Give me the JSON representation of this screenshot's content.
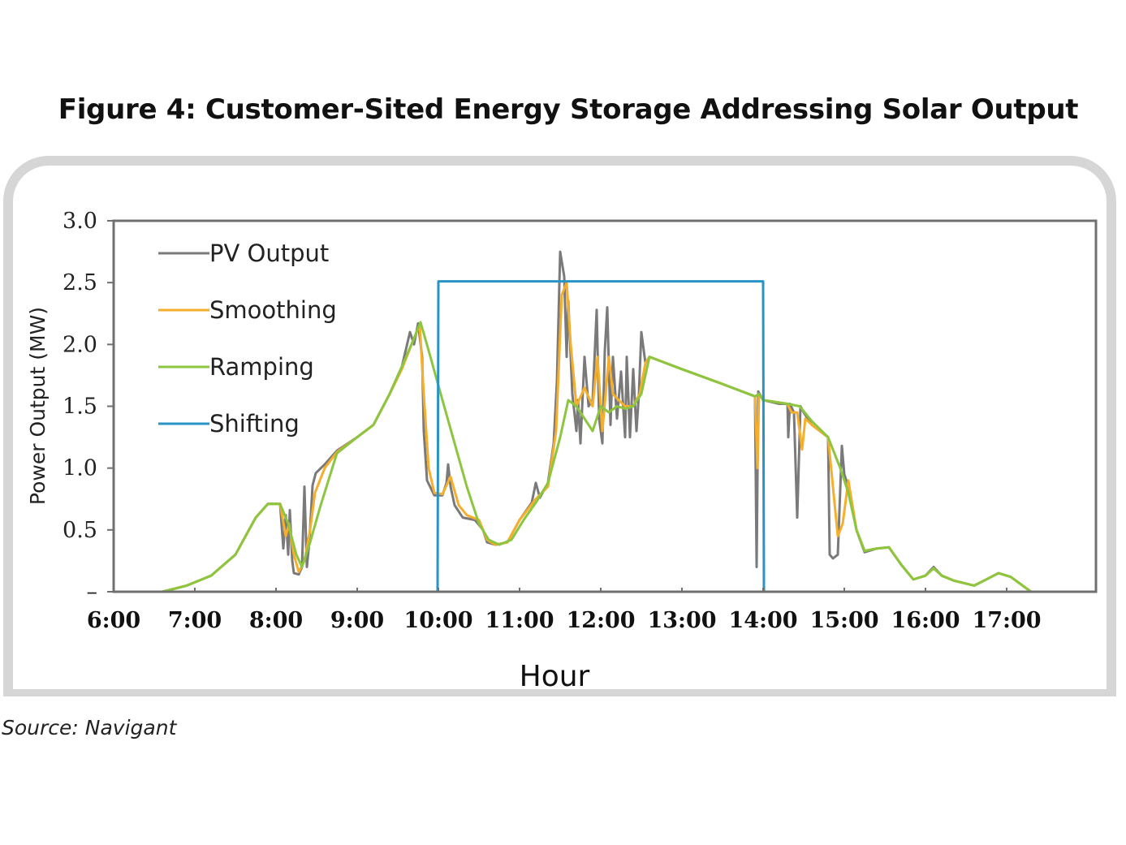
{
  "figure_title": "Figure 4: Customer-Sited Energy Storage Addressing Solar Output",
  "source": "Source: Navigant",
  "colors": {
    "pv": "#7a7a7a",
    "smoothing": "#f6ae2d",
    "ramping": "#8cc63f",
    "shifting": "#2a93c6",
    "axis": "#707070",
    "frame": "#d6d6d6"
  },
  "chart_data": {
    "type": "line",
    "title": "Figure 4: Customer-Sited Energy Storage Addressing Solar Output",
    "xlabel": "Hour",
    "ylabel": "Power Output (MW)",
    "xlim": [
      6,
      18.1
    ],
    "ylim": [
      0,
      3.0
    ],
    "x_ticks": [
      6,
      7,
      8,
      9,
      10,
      11,
      12,
      13,
      14,
      15,
      16,
      17
    ],
    "x_tick_labels": [
      "6:00",
      "7:00",
      "8:00",
      "9:00",
      "10:00",
      "11:00",
      "12:00",
      "13:00",
      "14:00",
      "15:00",
      "16:00",
      "17:00"
    ],
    "y_ticks": [
      0,
      0.5,
      1.0,
      1.5,
      2.0,
      2.5,
      3.0
    ],
    "y_tick_labels": [
      "–",
      "0.5",
      "1.0",
      "1.5",
      "2.0",
      "2.5",
      "3.0"
    ],
    "legend_position": "top-left",
    "series": [
      {
        "name": "PV Output",
        "color": "#7a7a7a",
        "points": [
          [
            6.6,
            0
          ],
          [
            6.9,
            0.05
          ],
          [
            7.2,
            0.13
          ],
          [
            7.5,
            0.3
          ],
          [
            7.75,
            0.6
          ],
          [
            7.9,
            0.71
          ],
          [
            8.05,
            0.71
          ],
          [
            8.09,
            0.35
          ],
          [
            8.12,
            0.62
          ],
          [
            8.15,
            0.3
          ],
          [
            8.17,
            0.66
          ],
          [
            8.2,
            0.25
          ],
          [
            8.22,
            0.15
          ],
          [
            8.28,
            0.14
          ],
          [
            8.32,
            0.2
          ],
          [
            8.35,
            0.85
          ],
          [
            8.38,
            0.2
          ],
          [
            8.41,
            0.4
          ],
          [
            8.45,
            0.86
          ],
          [
            8.49,
            0.96
          ],
          [
            8.6,
            1.03
          ],
          [
            8.75,
            1.14
          ],
          [
            9.0,
            1.25
          ],
          [
            9.2,
            1.35
          ],
          [
            9.4,
            1.6
          ],
          [
            9.55,
            1.82
          ],
          [
            9.65,
            2.1
          ],
          [
            9.7,
            2.0
          ],
          [
            9.75,
            2.17
          ],
          [
            9.8,
            1.9
          ],
          [
            9.82,
            1.3
          ],
          [
            9.86,
            0.9
          ],
          [
            9.95,
            0.78
          ],
          [
            10.05,
            0.78
          ],
          [
            10.1,
            0.88
          ],
          [
            10.12,
            1.03
          ],
          [
            10.15,
            0.85
          ],
          [
            10.2,
            0.7
          ],
          [
            10.25,
            0.65
          ],
          [
            10.3,
            0.6
          ],
          [
            10.45,
            0.58
          ],
          [
            10.55,
            0.5
          ],
          [
            10.6,
            0.4
          ],
          [
            10.7,
            0.38
          ],
          [
            10.85,
            0.4
          ],
          [
            11.0,
            0.58
          ],
          [
            11.15,
            0.72
          ],
          [
            11.2,
            0.88
          ],
          [
            11.25,
            0.76
          ],
          [
            11.35,
            0.88
          ],
          [
            11.42,
            1.2
          ],
          [
            11.46,
            1.7
          ],
          [
            11.5,
            2.75
          ],
          [
            11.55,
            2.55
          ],
          [
            11.58,
            1.9
          ],
          [
            11.6,
            2.35
          ],
          [
            11.65,
            1.6
          ],
          [
            11.7,
            1.3
          ],
          [
            11.72,
            1.55
          ],
          [
            11.75,
            1.2
          ],
          [
            11.8,
            1.9
          ],
          [
            11.85,
            1.5
          ],
          [
            11.9,
            1.55
          ],
          [
            11.95,
            2.28
          ],
          [
            11.98,
            1.4
          ],
          [
            12.02,
            1.2
          ],
          [
            12.05,
            1.95
          ],
          [
            12.08,
            2.3
          ],
          [
            12.12,
            1.35
          ],
          [
            12.15,
            1.9
          ],
          [
            12.2,
            1.4
          ],
          [
            12.25,
            1.78
          ],
          [
            12.3,
            1.25
          ],
          [
            12.32,
            1.9
          ],
          [
            12.36,
            1.25
          ],
          [
            12.4,
            1.8
          ],
          [
            12.44,
            1.3
          ],
          [
            12.47,
            1.6
          ],
          [
            12.5,
            2.1
          ],
          [
            12.55,
            1.85
          ],
          [
            12.6,
            1.9
          ],
          [
            13.0,
            1.8
          ],
          [
            13.5,
            1.68
          ],
          [
            13.9,
            1.58
          ],
          [
            13.92,
            0.2
          ],
          [
            13.94,
            1.62
          ],
          [
            14.0,
            1.55
          ],
          [
            14.2,
            1.52
          ],
          [
            14.3,
            1.52
          ],
          [
            14.31,
            1.25
          ],
          [
            14.33,
            1.52
          ],
          [
            14.38,
            1.45
          ],
          [
            14.42,
            0.6
          ],
          [
            14.46,
            1.5
          ],
          [
            14.5,
            1.45
          ],
          [
            14.6,
            1.35
          ],
          [
            14.7,
            1.3
          ],
          [
            14.8,
            1.25
          ],
          [
            14.82,
            0.3
          ],
          [
            14.86,
            0.27
          ],
          [
            14.92,
            0.3
          ],
          [
            14.97,
            1.18
          ],
          [
            15.0,
            0.95
          ],
          [
            15.05,
            0.85
          ],
          [
            15.15,
            0.5
          ],
          [
            15.25,
            0.32
          ],
          [
            15.4,
            0.35
          ],
          [
            15.55,
            0.36
          ],
          [
            15.7,
            0.22
          ],
          [
            15.85,
            0.1
          ],
          [
            16.0,
            0.13
          ],
          [
            16.1,
            0.2
          ],
          [
            16.2,
            0.13
          ],
          [
            16.35,
            0.09
          ],
          [
            16.6,
            0.05
          ],
          [
            16.75,
            0.1
          ],
          [
            16.9,
            0.15
          ],
          [
            17.05,
            0.12
          ],
          [
            17.3,
            0
          ]
        ]
      },
      {
        "name": "Smoothing",
        "color": "#f6ae2d",
        "points": [
          [
            6.6,
            0
          ],
          [
            6.9,
            0.05
          ],
          [
            7.2,
            0.13
          ],
          [
            7.5,
            0.3
          ],
          [
            7.75,
            0.6
          ],
          [
            7.9,
            0.71
          ],
          [
            8.05,
            0.71
          ],
          [
            8.12,
            0.45
          ],
          [
            8.16,
            0.55
          ],
          [
            8.22,
            0.3
          ],
          [
            8.28,
            0.16
          ],
          [
            8.35,
            0.25
          ],
          [
            8.42,
            0.5
          ],
          [
            8.48,
            0.8
          ],
          [
            8.6,
            1.0
          ],
          [
            8.75,
            1.13
          ],
          [
            9.0,
            1.25
          ],
          [
            9.2,
            1.35
          ],
          [
            9.4,
            1.6
          ],
          [
            9.55,
            1.8
          ],
          [
            9.7,
            2.05
          ],
          [
            9.77,
            2.16
          ],
          [
            9.82,
            1.6
          ],
          [
            9.88,
            1.0
          ],
          [
            9.95,
            0.8
          ],
          [
            10.05,
            0.79
          ],
          [
            10.15,
            0.93
          ],
          [
            10.25,
            0.7
          ],
          [
            10.35,
            0.62
          ],
          [
            10.5,
            0.58
          ],
          [
            10.6,
            0.42
          ],
          [
            10.7,
            0.38
          ],
          [
            10.85,
            0.4
          ],
          [
            11.0,
            0.58
          ],
          [
            11.2,
            0.75
          ],
          [
            11.35,
            0.85
          ],
          [
            11.45,
            1.3
          ],
          [
            11.52,
            2.4
          ],
          [
            11.58,
            2.5
          ],
          [
            11.63,
            2.0
          ],
          [
            11.7,
            1.5
          ],
          [
            11.8,
            1.65
          ],
          [
            11.9,
            1.5
          ],
          [
            11.96,
            1.9
          ],
          [
            12.02,
            1.3
          ],
          [
            12.1,
            1.9
          ],
          [
            12.15,
            1.6
          ],
          [
            12.22,
            1.55
          ],
          [
            12.3,
            1.5
          ],
          [
            12.4,
            1.5
          ],
          [
            12.48,
            1.6
          ],
          [
            12.55,
            1.85
          ],
          [
            12.6,
            1.9
          ],
          [
            13.0,
            1.8
          ],
          [
            13.5,
            1.68
          ],
          [
            13.9,
            1.58
          ],
          [
            13.93,
            1.0
          ],
          [
            13.95,
            1.6
          ],
          [
            14.0,
            1.55
          ],
          [
            14.3,
            1.52
          ],
          [
            14.35,
            1.45
          ],
          [
            14.42,
            1.45
          ],
          [
            14.48,
            1.15
          ],
          [
            14.52,
            1.4
          ],
          [
            14.6,
            1.35
          ],
          [
            14.8,
            1.25
          ],
          [
            14.86,
            0.85
          ],
          [
            14.92,
            0.45
          ],
          [
            14.98,
            0.55
          ],
          [
            15.05,
            0.9
          ],
          [
            15.15,
            0.5
          ],
          [
            15.25,
            0.33
          ],
          [
            15.4,
            0.35
          ],
          [
            15.55,
            0.36
          ],
          [
            15.7,
            0.22
          ],
          [
            15.85,
            0.1
          ],
          [
            16.0,
            0.13
          ],
          [
            16.1,
            0.19
          ],
          [
            16.2,
            0.13
          ],
          [
            16.35,
            0.09
          ],
          [
            16.6,
            0.05
          ],
          [
            16.75,
            0.1
          ],
          [
            16.9,
            0.15
          ],
          [
            17.05,
            0.12
          ],
          [
            17.3,
            0
          ]
        ]
      },
      {
        "name": "Ramping",
        "color": "#8cc63f",
        "points": [
          [
            6.6,
            0
          ],
          [
            6.9,
            0.05
          ],
          [
            7.2,
            0.13
          ],
          [
            7.5,
            0.3
          ],
          [
            7.75,
            0.6
          ],
          [
            7.9,
            0.71
          ],
          [
            8.05,
            0.71
          ],
          [
            8.15,
            0.55
          ],
          [
            8.25,
            0.3
          ],
          [
            8.32,
            0.2
          ],
          [
            8.42,
            0.4
          ],
          [
            8.55,
            0.7
          ],
          [
            8.75,
            1.12
          ],
          [
            9.0,
            1.25
          ],
          [
            9.2,
            1.35
          ],
          [
            9.4,
            1.6
          ],
          [
            9.55,
            1.82
          ],
          [
            9.7,
            2.05
          ],
          [
            9.78,
            2.18
          ],
          [
            9.88,
            1.95
          ],
          [
            10.05,
            1.55
          ],
          [
            10.2,
            1.2
          ],
          [
            10.35,
            0.85
          ],
          [
            10.5,
            0.55
          ],
          [
            10.62,
            0.42
          ],
          [
            10.75,
            0.38
          ],
          [
            10.9,
            0.42
          ],
          [
            11.05,
            0.58
          ],
          [
            11.2,
            0.72
          ],
          [
            11.35,
            0.88
          ],
          [
            11.5,
            1.25
          ],
          [
            11.6,
            1.55
          ],
          [
            11.7,
            1.5
          ],
          [
            11.8,
            1.4
          ],
          [
            11.9,
            1.3
          ],
          [
            12.0,
            1.5
          ],
          [
            12.1,
            1.45
          ],
          [
            12.2,
            1.5
          ],
          [
            12.3,
            1.48
          ],
          [
            12.4,
            1.5
          ],
          [
            12.5,
            1.6
          ],
          [
            12.6,
            1.9
          ],
          [
            13.0,
            1.8
          ],
          [
            13.5,
            1.68
          ],
          [
            13.9,
            1.58
          ],
          [
            13.95,
            1.6
          ],
          [
            14.0,
            1.55
          ],
          [
            14.3,
            1.52
          ],
          [
            14.45,
            1.5
          ],
          [
            14.6,
            1.38
          ],
          [
            14.8,
            1.25
          ],
          [
            14.95,
            1.0
          ],
          [
            15.05,
            0.8
          ],
          [
            15.15,
            0.5
          ],
          [
            15.25,
            0.33
          ],
          [
            15.4,
            0.35
          ],
          [
            15.55,
            0.36
          ],
          [
            15.7,
            0.22
          ],
          [
            15.85,
            0.1
          ],
          [
            16.0,
            0.13
          ],
          [
            16.1,
            0.19
          ],
          [
            16.2,
            0.13
          ],
          [
            16.35,
            0.09
          ],
          [
            16.6,
            0.05
          ],
          [
            16.75,
            0.1
          ],
          [
            16.9,
            0.15
          ],
          [
            17.05,
            0.12
          ],
          [
            17.3,
            0
          ]
        ]
      },
      {
        "name": "Shifting",
        "color": "#2a93c6",
        "points": [
          [
            6.0,
            0
          ],
          [
            9.99,
            0
          ],
          [
            10.0,
            2.51
          ],
          [
            14.0,
            2.51
          ],
          [
            14.01,
            0
          ],
          [
            18.1,
            0
          ]
        ]
      }
    ]
  }
}
